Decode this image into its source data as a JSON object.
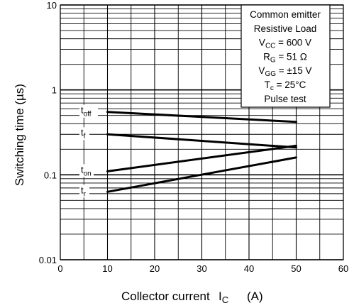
{
  "chart_data": {
    "type": "line",
    "xlabel": "Collector current",
    "xlabel_symbol": "I",
    "xlabel_symbol_sub": "C",
    "xlabel_unit": "(A)",
    "ylabel": "Switching time   (µs)",
    "xlim": [
      0,
      60
    ],
    "ylim": [
      0.01,
      10
    ],
    "yscale": "log",
    "grid": true,
    "x_ticks": [
      "0",
      "10",
      "20",
      "30",
      "40",
      "50",
      "60"
    ],
    "y_ticks": [
      "0.01",
      "0.1",
      "1",
      "10"
    ],
    "legend_placement": "top-right",
    "conditions": [
      {
        "main": "Common emitter"
      },
      {
        "main": "Resistive Load"
      },
      {
        "main": "V",
        "sub": "CC",
        "rest": " = 600 V"
      },
      {
        "main": "R",
        "sub": "G",
        "rest": " = 51 Ω"
      },
      {
        "main": "V",
        "sub": "GG",
        "rest": " = ±15 V"
      },
      {
        "main": "T",
        "sub": "c",
        "rest": " = 25°C"
      },
      {
        "main": "Pulse test"
      }
    ],
    "series": [
      {
        "name": "toff",
        "label_main": "t",
        "label_sub": "off",
        "x": [
          10,
          50
        ],
        "y": [
          0.55,
          0.42
        ]
      },
      {
        "name": "tf",
        "label_main": "t",
        "label_sub": "f",
        "x": [
          10,
          50
        ],
        "y": [
          0.3,
          0.21
        ]
      },
      {
        "name": "ton",
        "label_main": "t",
        "label_sub": "on",
        "x": [
          10,
          50
        ],
        "y": [
          0.11,
          0.22
        ]
      },
      {
        "name": "tr",
        "label_main": "t",
        "label_sub": "r",
        "x": [
          10,
          50
        ],
        "y": [
          0.063,
          0.16
        ]
      }
    ]
  }
}
